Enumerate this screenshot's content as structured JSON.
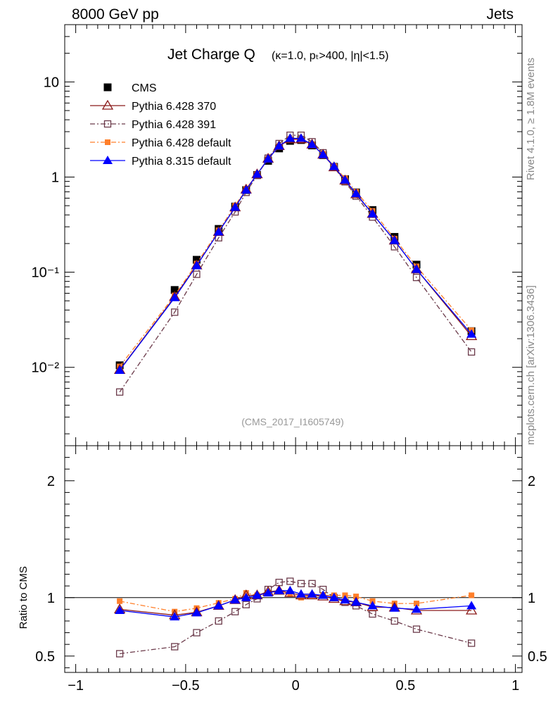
{
  "header": {
    "left": "8000 GeV pp",
    "right": "Jets"
  },
  "side_labels": {
    "rivet": "Rivet 4.1.0, ≥ 1.8M events",
    "mcplots": "mcplots.cern.ch [arXiv:1306.3436]"
  },
  "chart_data": {
    "type": "line",
    "title": "Jet Charge Q",
    "title_detail": "(κ=1.0, pₜ>400, |η|<1.5)",
    "analysis_tag": "(CMS_2017_I1605749)",
    "main": {
      "yscale": "log",
      "ylim": [
        0.0015,
        40
      ],
      "y_tick_labels": [
        "10",
        "1",
        "10⁻¹",
        "10⁻²"
      ]
    },
    "ratio": {
      "ylabel": "Ratio to CMS",
      "ylim": [
        0.36,
        2.3
      ],
      "y_tick_labels": [
        "2",
        "1",
        "0.5"
      ]
    },
    "xlim": [
      -1.05,
      1.03
    ],
    "x_tick_labels": [
      "−1",
      "−0.5",
      "0",
      "0.5",
      "1"
    ],
    "x": [
      -0.8,
      -0.55,
      -0.45,
      -0.35,
      -0.275,
      -0.225,
      -0.175,
      -0.125,
      -0.075,
      -0.025,
      0.025,
      0.075,
      0.125,
      0.175,
      0.225,
      0.275,
      0.35,
      0.45,
      0.55,
      0.8
    ],
    "legend": {
      "position": "top-left",
      "entries": [
        "CMS",
        "Pythia 6.428 370",
        "Pythia 6.428 391",
        "Pythia 6.428 default",
        "Pythia 8.315 default"
      ]
    },
    "series": [
      {
        "name": "CMS",
        "color": "#000000",
        "marker": "square-filled",
        "line": "none",
        "values": [
          0.0105,
          0.065,
          0.135,
          0.285,
          0.49,
          0.73,
          1.05,
          1.48,
          2.0,
          2.4,
          2.45,
          2.15,
          1.7,
          1.28,
          0.95,
          0.69,
          0.45,
          0.235,
          0.12,
          0.024
        ],
        "ratio": [
          1,
          1,
          1,
          1,
          1,
          1,
          1,
          1,
          1,
          1,
          1,
          1,
          1,
          1,
          1,
          1,
          1,
          1,
          1,
          1
        ]
      },
      {
        "name": "Pythia 6.428 370",
        "color": "#8b1a1a",
        "marker": "triangle-open",
        "line": "solid",
        "values": [
          0.0094,
          0.055,
          0.118,
          0.265,
          0.48,
          0.74,
          1.07,
          1.56,
          2.12,
          2.5,
          2.5,
          2.2,
          1.72,
          1.27,
          0.92,
          0.66,
          0.41,
          0.215,
          0.107,
          0.0213
        ],
        "ratio": [
          0.9,
          0.85,
          0.875,
          0.93,
          0.98,
          1.02,
          1.02,
          1.05,
          1.06,
          1.04,
          1.02,
          1.02,
          1.01,
          0.99,
          0.97,
          0.96,
          0.92,
          0.915,
          0.89,
          0.89
        ]
      },
      {
        "name": "Pythia 6.428 391",
        "color": "#6b3a4a",
        "marker": "square-open",
        "line": "dashdot",
        "values": [
          0.0055,
          0.038,
          0.095,
          0.23,
          0.43,
          0.69,
          1.04,
          1.58,
          2.25,
          2.75,
          2.75,
          2.35,
          1.8,
          1.27,
          0.89,
          0.63,
          0.38,
          0.185,
          0.088,
          0.0145
        ],
        "ratio": [
          0.52,
          0.58,
          0.7,
          0.8,
          0.88,
          0.94,
          0.99,
          1.07,
          1.13,
          1.14,
          1.12,
          1.12,
          1.07,
          1.0,
          0.96,
          0.93,
          0.86,
          0.8,
          0.73,
          0.61
        ]
      },
      {
        "name": "Pythia 6.428 default",
        "color": "#ff7f2a",
        "marker": "square-filled-small",
        "line": "dashdot",
        "values": [
          0.0102,
          0.057,
          0.123,
          0.275,
          0.5,
          0.75,
          1.07,
          1.53,
          2.1,
          2.5,
          2.48,
          2.2,
          1.75,
          1.3,
          0.97,
          0.7,
          0.44,
          0.225,
          0.115,
          0.0245
        ],
        "ratio": [
          0.97,
          0.88,
          0.91,
          0.955,
          0.99,
          1.04,
          1.02,
          1.04,
          1.05,
          1.03,
          1.0,
          1.02,
          1.02,
          1.02,
          1.02,
          1.01,
          0.97,
          0.95,
          0.95,
          1.02
        ]
      },
      {
        "name": "Pythia 8.315 default",
        "color": "#0000ff",
        "marker": "triangle-filled",
        "line": "solid",
        "values": [
          0.0093,
          0.054,
          0.117,
          0.265,
          0.48,
          0.73,
          1.07,
          1.55,
          2.12,
          2.55,
          2.55,
          2.2,
          1.72,
          1.29,
          0.93,
          0.67,
          0.41,
          0.215,
          0.107,
          0.0223
        ],
        "ratio": [
          0.89,
          0.835,
          0.87,
          0.93,
          0.98,
          1.0,
          1.02,
          1.04,
          1.06,
          1.06,
          1.03,
          1.03,
          1.02,
          1.0,
          0.98,
          0.96,
          0.93,
          0.91,
          0.9,
          0.93
        ]
      }
    ]
  }
}
